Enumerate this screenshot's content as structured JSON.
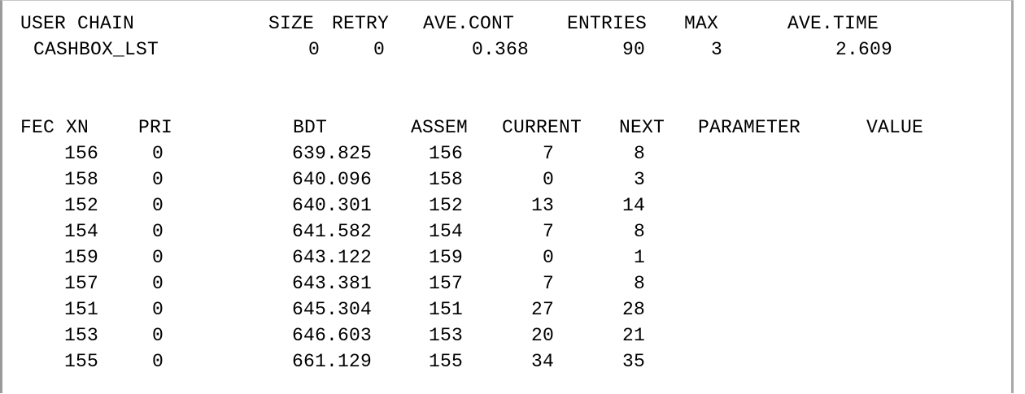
{
  "user_chain": {
    "headers": [
      "USER CHAIN",
      "SIZE",
      "RETRY",
      "AVE.CONT",
      "ENTRIES",
      "MAX",
      "AVE.TIME"
    ],
    "row": {
      "name": "CASHBOX_LST",
      "size": "0",
      "retry": "0",
      "ave_cont": "0.368",
      "entries": "90",
      "max": "3",
      "ave_time": "2.609"
    }
  },
  "fec": {
    "headers": [
      "FEC XN",
      "PRI",
      "BDT",
      "ASSEM",
      "CURRENT",
      "NEXT",
      "PARAMETER",
      "VALUE"
    ],
    "rows": [
      {
        "xn": "156",
        "pri": "0",
        "bdt": "639.825",
        "assem": "156",
        "current": "7",
        "next": "8"
      },
      {
        "xn": "158",
        "pri": "0",
        "bdt": "640.096",
        "assem": "158",
        "current": "0",
        "next": "3"
      },
      {
        "xn": "152",
        "pri": "0",
        "bdt": "640.301",
        "assem": "152",
        "current": "13",
        "next": "14"
      },
      {
        "xn": "154",
        "pri": "0",
        "bdt": "641.582",
        "assem": "154",
        "current": "7",
        "next": "8"
      },
      {
        "xn": "159",
        "pri": "0",
        "bdt": "643.122",
        "assem": "159",
        "current": "0",
        "next": "1"
      },
      {
        "xn": "157",
        "pri": "0",
        "bdt": "643.381",
        "assem": "157",
        "current": "7",
        "next": "8"
      },
      {
        "xn": "151",
        "pri": "0",
        "bdt": "645.304",
        "assem": "151",
        "current": "27",
        "next": "28"
      },
      {
        "xn": "153",
        "pri": "0",
        "bdt": "646.603",
        "assem": "153",
        "current": "20",
        "next": "21"
      },
      {
        "xn": "155",
        "pri": "0",
        "bdt": "661.129",
        "assem": "155",
        "current": "34",
        "next": "35"
      }
    ]
  }
}
